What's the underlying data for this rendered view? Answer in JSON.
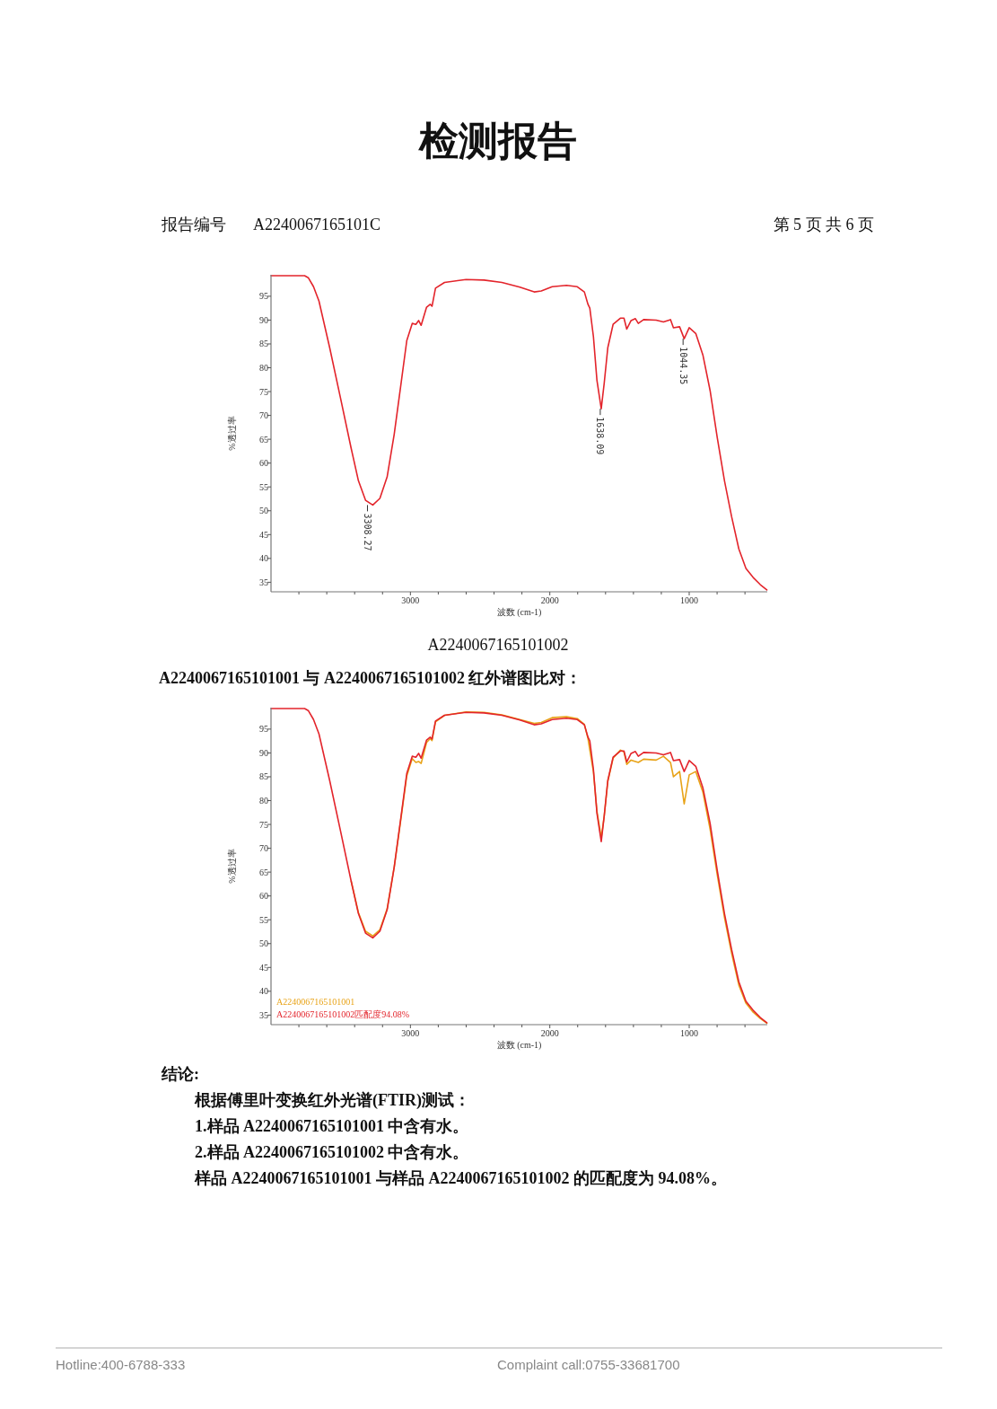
{
  "chart_data": [
    {
      "type": "line",
      "title": "检测报告",
      "xlabel": "波数 (cm-1)",
      "ylabel": "%透过率",
      "xlim": [
        4000,
        440
      ],
      "ylim": [
        33,
        99.5
      ],
      "xticks": [
        {
          "value": 3800,
          "label": null
        },
        {
          "value": 3600,
          "label": null
        },
        {
          "value": 3400,
          "label": null
        },
        {
          "value": 3200,
          "label": null
        },
        3000,
        {
          "value": 2800,
          "label": null
        },
        {
          "value": 2600,
          "label": null
        },
        {
          "value": 2400,
          "label": null
        },
        {
          "value": 2200,
          "label": null
        },
        2000,
        {
          "value": 1800,
          "label": null
        },
        {
          "value": 1600,
          "label": null
        },
        {
          "value": 1400,
          "label": null
        },
        {
          "value": 1200,
          "label": null
        },
        1000,
        {
          "value": 800,
          "label": null
        },
        {
          "value": 600,
          "label": null
        }
      ],
      "yticks": [
        35,
        40,
        45,
        50,
        55,
        60,
        65,
        70,
        75,
        80,
        85,
        90,
        95
      ],
      "grid": false,
      "legend": false,
      "x": [
        3999,
        3759,
        3733,
        3695,
        3656,
        3579,
        3502,
        3425,
        3373,
        3322,
        3270,
        3219,
        3167,
        3116,
        3064,
        3026,
        2987,
        2961,
        2941,
        2923,
        2884,
        2858,
        2845,
        2820,
        2755,
        2601,
        2472,
        2344,
        2215,
        2112,
        2061,
        1983,
        1880,
        1803,
        1752,
        1726,
        1713,
        1687,
        1662,
        1631,
        1610,
        1584,
        1546,
        1494,
        1468,
        1448,
        1417,
        1386,
        1365,
        1327,
        1237,
        1185,
        1134,
        1113,
        1069,
        1036,
        1000,
        953,
        902,
        850,
        799,
        747,
        696,
        644,
        593,
        541,
        490,
        443
      ],
      "series": [
        {
          "color": "#e3242b",
          "values": [
            99.3,
            99.3,
            98.9,
            97.0,
            94.0,
            84.2,
            73.7,
            63.1,
            56.3,
            52.2,
            51.2,
            52.6,
            57.1,
            66.1,
            77.4,
            85.7,
            89.3,
            89.1,
            89.9,
            88.9,
            92.7,
            93.3,
            92.9,
            96.7,
            97.9,
            98.5,
            98.4,
            97.9,
            96.9,
            95.9,
            96.1,
            97.0,
            97.3,
            97.0,
            95.9,
            93.3,
            92.5,
            86.5,
            77.4,
            71.4,
            76.7,
            84.2,
            89.1,
            90.4,
            90.4,
            88.1,
            89.9,
            90.3,
            89.3,
            90.1,
            90.0,
            89.6,
            90.1,
            88.4,
            88.6,
            86.1,
            88.4,
            87.2,
            82.7,
            75.2,
            65.4,
            56.3,
            48.8,
            42.0,
            37.9,
            36.0,
            34.5,
            33.4
          ]
        }
      ],
      "annotations": [
        "报告编号",
        "A2240067165101C",
        "第 5 页 共 6 页",
        "A2240067165101002",
        {
          "text": "3308.27",
          "x": 3308,
          "y": 51.2
        },
        {
          "text": "1638.09",
          "x": 1638,
          "y": 71.4
        },
        {
          "text": "1044.35",
          "x": 1044,
          "y": 86.1
        }
      ]
    },
    {
      "type": "line",
      "title": "A2240067165101001 与 A2240067165101002 红外谱图比对：",
      "xlabel": "波数 (cm-1)",
      "ylabel": "%透过率",
      "xlim": [
        4000,
        440
      ],
      "ylim": [
        33,
        99.5
      ],
      "xticks": [
        {
          "value": 3800,
          "label": null
        },
        {
          "value": 3600,
          "label": null
        },
        {
          "value": 3400,
          "label": null
        },
        {
          "value": 3200,
          "label": null
        },
        3000,
        {
          "value": 2800,
          "label": null
        },
        {
          "value": 2600,
          "label": null
        },
        {
          "value": 2400,
          "label": null
        },
        {
          "value": 2200,
          "label": null
        },
        2000,
        {
          "value": 1800,
          "label": null
        },
        {
          "value": 1600,
          "label": null
        },
        {
          "value": 1400,
          "label": null
        },
        {
          "value": 1200,
          "label": null
        },
        1000,
        {
          "value": 800,
          "label": null
        },
        {
          "value": 600,
          "label": null
        }
      ],
      "yticks": [
        35,
        40,
        45,
        50,
        55,
        60,
        65,
        70,
        75,
        80,
        85,
        90,
        95
      ],
      "grid": false,
      "legend": "bottom left",
      "x": [
        3999,
        3759,
        3733,
        3695,
        3656,
        3579,
        3502,
        3425,
        3373,
        3322,
        3270,
        3219,
        3167,
        3116,
        3064,
        3026,
        2987,
        2961,
        2941,
        2923,
        2884,
        2858,
        2845,
        2820,
        2755,
        2601,
        2472,
        2344,
        2215,
        2112,
        2061,
        1983,
        1880,
        1803,
        1752,
        1726,
        1713,
        1687,
        1662,
        1631,
        1610,
        1584,
        1546,
        1494,
        1468,
        1448,
        1417,
        1386,
        1365,
        1327,
        1237,
        1185,
        1134,
        1113,
        1069,
        1036,
        1000,
        953,
        902,
        850,
        799,
        747,
        696,
        644,
        593,
        541,
        490,
        443
      ],
      "series": [
        {
          "name": "A2240067165101001",
          "color": "#e8a317",
          "values": [
            null,
            null,
            null,
            null,
            null,
            null,
            null,
            63.1,
            56.5,
            52.6,
            51.6,
            52.9,
            57.3,
            66.1,
            77.0,
            85.2,
            88.8,
            88.0,
            88.2,
            87.8,
            92.2,
            93.0,
            92.6,
            96.5,
            97.9,
            98.6,
            98.5,
            98.0,
            97.0,
            96.2,
            96.4,
            97.4,
            97.6,
            97.2,
            96.0,
            93.0,
            90.6,
            86.0,
            77.8,
            72.2,
            76.7,
            84.0,
            88.9,
            90.6,
            90.2,
            87.6,
            88.5,
            88.2,
            88.0,
            88.7,
            88.5,
            89.3,
            88.0,
            85.0,
            86.1,
            79.3,
            85.4,
            86.1,
            81.8,
            74.0,
            64.5,
            55.5,
            48.0,
            41.3,
            37.5,
            35.6,
            34.3,
            33.3
          ]
        },
        {
          "name": "A2240067165101002匹配度94.08%",
          "color": "#e3242b",
          "values": [
            99.3,
            99.3,
            98.9,
            97.0,
            94.0,
            84.2,
            73.7,
            63.1,
            56.3,
            52.2,
            51.2,
            52.6,
            57.1,
            66.1,
            77.4,
            85.7,
            89.3,
            89.1,
            89.9,
            88.9,
            92.7,
            93.3,
            92.9,
            96.7,
            97.9,
            98.5,
            98.4,
            97.9,
            96.9,
            95.9,
            96.1,
            97.0,
            97.3,
            97.0,
            95.9,
            93.3,
            92.5,
            86.5,
            77.4,
            71.4,
            76.7,
            84.2,
            89.1,
            90.4,
            90.4,
            88.1,
            89.9,
            90.3,
            89.3,
            90.1,
            90.0,
            89.6,
            90.1,
            88.4,
            88.6,
            86.1,
            88.4,
            87.2,
            82.7,
            75.2,
            65.4,
            56.3,
            48.8,
            42.0,
            37.9,
            36.0,
            34.5,
            33.4
          ]
        }
      ],
      "annotations": [
        "结论:",
        "根据傅里叶变换红外光谱(FTIR)测试：",
        "1.样品 A2240067165101001 中含有水。",
        "2.样品 A2240067165101002 中含有水。",
        "样品 A2240067165101001 与样品 A2240067165101002 的匹配度为 94.08%。",
        "Hotline:400-6788-333",
        "Complaint call:0755-33681700"
      ]
    }
  ]
}
